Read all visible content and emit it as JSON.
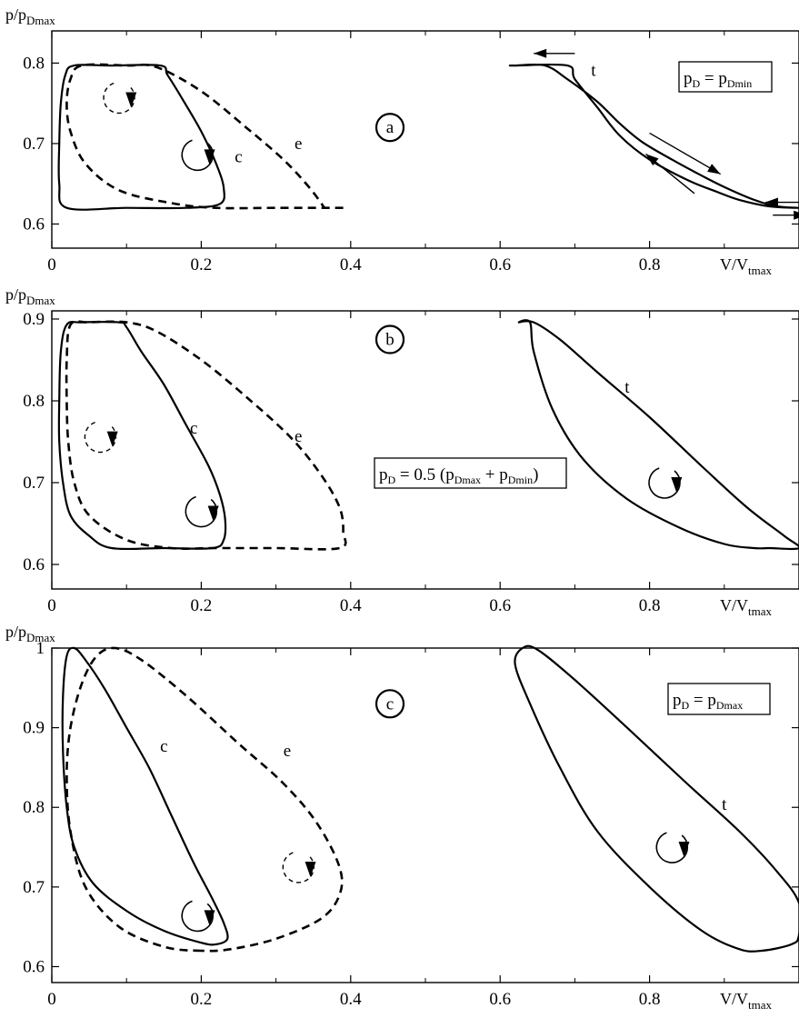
{
  "chart_data": [
    {
      "type": "line",
      "panel": "a",
      "ylabel": "p/p",
      "ylabel_sub": "Dmax",
      "xlabel": "V/V",
      "xlabel_sub": "tmax",
      "xlim": [
        0,
        1.0
      ],
      "ylim": [
        0.57,
        0.84
      ],
      "xticks": [
        0,
        0.2,
        0.4,
        0.6,
        0.8
      ],
      "yticks": [
        0.6,
        0.7,
        0.8
      ],
      "xtick_labels": [
        "0",
        "0.2",
        "0.4",
        "0.6",
        "0.8"
      ],
      "ytick_labels": [
        "0.6",
        "0.7",
        "0.8"
      ],
      "legend": {
        "parts": [
          {
            "text": "p"
          },
          {
            "text": "D",
            "sub": true
          },
          {
            "text": " = p"
          },
          {
            "text": "Dmin",
            "sub": true
          }
        ]
      },
      "series": [
        {
          "name": "c",
          "style": "solid",
          "closed": true,
          "points": [
            [
              0.02,
              0.62
            ],
            [
              0.01,
              0.65
            ],
            [
              0.01,
              0.7
            ],
            [
              0.012,
              0.75
            ],
            [
              0.018,
              0.785
            ],
            [
              0.03,
              0.797
            ],
            [
              0.08,
              0.797
            ],
            [
              0.145,
              0.797
            ],
            [
              0.155,
              0.785
            ],
            [
              0.175,
              0.755
            ],
            [
              0.2,
              0.715
            ],
            [
              0.22,
              0.675
            ],
            [
              0.23,
              0.645
            ],
            [
              0.225,
              0.625
            ],
            [
              0.18,
              0.62
            ],
            [
              0.1,
              0.62
            ]
          ]
        },
        {
          "name": "e",
          "style": "dashed",
          "closed": false,
          "points": [
            [
              0.39,
              0.62
            ],
            [
              0.3,
              0.62
            ],
            [
              0.22,
              0.62
            ],
            [
              0.16,
              0.626
            ],
            [
              0.09,
              0.642
            ],
            [
              0.045,
              0.675
            ],
            [
              0.025,
              0.715
            ],
            [
              0.02,
              0.75
            ],
            [
              0.025,
              0.78
            ],
            [
              0.04,
              0.797
            ],
            [
              0.1,
              0.797
            ],
            [
              0.14,
              0.795
            ],
            [
              0.2,
              0.765
            ],
            [
              0.26,
              0.72
            ],
            [
              0.31,
              0.68
            ],
            [
              0.345,
              0.645
            ],
            [
              0.365,
              0.62
            ]
          ]
        },
        {
          "name": "t",
          "style": "solid",
          "closed": true,
          "points": [
            [
              0.62,
              0.797
            ],
            [
              0.66,
              0.797
            ],
            [
              0.69,
              0.78
            ],
            [
              0.73,
              0.752
            ],
            [
              0.76,
              0.725
            ],
            [
              0.79,
              0.702
            ],
            [
              0.83,
              0.68
            ],
            [
              0.87,
              0.66
            ],
            [
              0.9,
              0.646
            ],
            [
              0.94,
              0.63
            ],
            [
              0.97,
              0.622
            ],
            [
              1.0,
              0.62
            ],
            [
              0.96,
              0.622
            ],
            [
              0.92,
              0.63
            ],
            [
              0.89,
              0.64
            ],
            [
              0.85,
              0.655
            ],
            [
              0.8,
              0.68
            ],
            [
              0.76,
              0.71
            ],
            [
              0.73,
              0.745
            ],
            [
              0.7,
              0.78
            ],
            [
              0.69,
              0.797
            ],
            [
              0.62,
              0.797
            ]
          ]
        }
      ],
      "curve_labels": [
        {
          "text": "c",
          "x": 0.25,
          "y": 0.677
        },
        {
          "text": "e",
          "x": 0.33,
          "y": 0.693
        },
        {
          "text": "t",
          "x": 0.725,
          "y": 0.784
        }
      ],
      "direction_markers": [
        {
          "x": 0.09,
          "y": 0.757,
          "style": "dashed",
          "rotation": "clockwise"
        },
        {
          "x": 0.195,
          "y": 0.686,
          "style": "solid",
          "rotation": "counterclockwise"
        }
      ],
      "panel_marker": {
        "text": "a",
        "x": 0.5,
        "y": 0.72
      }
    },
    {
      "type": "line",
      "panel": "b",
      "ylabel": "p/p",
      "ylabel_sub": "Dmax",
      "xlabel": "V/V",
      "xlabel_sub": "tmax",
      "xlim": [
        0,
        1.0
      ],
      "ylim": [
        0.57,
        0.91
      ],
      "xticks": [
        0,
        0.2,
        0.4,
        0.6,
        0.8
      ],
      "yticks": [
        0.6,
        0.7,
        0.8,
        0.9
      ],
      "xtick_labels": [
        "0",
        "0.2",
        "0.4",
        "0.6",
        "0.8"
      ],
      "ytick_labels": [
        "0.6",
        "0.7",
        "0.8",
        "0.9"
      ],
      "legend": {
        "parts": [
          {
            "text": "p"
          },
          {
            "text": "D",
            "sub": true
          },
          {
            "text": " = 0.5 (p"
          },
          {
            "text": "Dmax",
            "sub": true
          },
          {
            "text": " + p"
          },
          {
            "text": "Dmin",
            "sub": true
          },
          {
            "text": ")"
          }
        ]
      },
      "series": [
        {
          "name": "c",
          "style": "solid",
          "closed": true,
          "points": [
            [
              0.08,
              0.62
            ],
            [
              0.05,
              0.635
            ],
            [
              0.025,
              0.66
            ],
            [
              0.015,
              0.7
            ],
            [
              0.01,
              0.75
            ],
            [
              0.01,
              0.8
            ],
            [
              0.012,
              0.86
            ],
            [
              0.02,
              0.893
            ],
            [
              0.04,
              0.896
            ],
            [
              0.09,
              0.896
            ],
            [
              0.1,
              0.89
            ],
            [
              0.12,
              0.86
            ],
            [
              0.15,
              0.82
            ],
            [
              0.18,
              0.77
            ],
            [
              0.21,
              0.72
            ],
            [
              0.225,
              0.685
            ],
            [
              0.232,
              0.655
            ],
            [
              0.23,
              0.63
            ],
            [
              0.215,
              0.62
            ],
            [
              0.15,
              0.62
            ]
          ]
        },
        {
          "name": "e",
          "style": "dashed",
          "closed": true,
          "points": [
            [
              0.385,
              0.62
            ],
            [
              0.3,
              0.62
            ],
            [
              0.22,
              0.62
            ],
            [
              0.16,
              0.62
            ],
            [
              0.1,
              0.63
            ],
            [
              0.05,
              0.66
            ],
            [
              0.03,
              0.7
            ],
            [
              0.022,
              0.75
            ],
            [
              0.02,
              0.8
            ],
            [
              0.02,
              0.85
            ],
            [
              0.025,
              0.893
            ],
            [
              0.05,
              0.896
            ],
            [
              0.1,
              0.896
            ],
            [
              0.14,
              0.885
            ],
            [
              0.2,
              0.85
            ],
            [
              0.26,
              0.805
            ],
            [
              0.32,
              0.755
            ],
            [
              0.36,
              0.71
            ],
            [
              0.385,
              0.67
            ],
            [
              0.39,
              0.64
            ]
          ]
        },
        {
          "name": "t",
          "style": "solid",
          "closed": true,
          "points": [
            [
              0.625,
              0.896
            ],
            [
              0.645,
              0.896
            ],
            [
              0.68,
              0.875
            ],
            [
              0.73,
              0.835
            ],
            [
              0.8,
              0.78
            ],
            [
              0.87,
              0.72
            ],
            [
              0.93,
              0.67
            ],
            [
              0.98,
              0.635
            ],
            [
              1.0,
              0.62
            ],
            [
              0.96,
              0.62
            ],
            [
              0.94,
              0.62
            ],
            [
              0.9,
              0.625
            ],
            [
              0.84,
              0.645
            ],
            [
              0.77,
              0.68
            ],
            [
              0.71,
              0.73
            ],
            [
              0.67,
              0.79
            ],
            [
              0.645,
              0.86
            ],
            [
              0.64,
              0.896
            ]
          ]
        }
      ],
      "curve_labels": [
        {
          "text": "c",
          "x": 0.19,
          "y": 0.76
        },
        {
          "text": "e",
          "x": 0.33,
          "y": 0.75
        },
        {
          "text": "t",
          "x": 0.77,
          "y": 0.81
        }
      ],
      "direction_markers": [
        {
          "x": 0.065,
          "y": 0.756,
          "style": "dashed",
          "rotation": "clockwise"
        },
        {
          "x": 0.2,
          "y": 0.665,
          "style": "solid",
          "rotation": "counterclockwise"
        },
        {
          "x": 0.82,
          "y": 0.7,
          "style": "solid",
          "rotation": "clockwise"
        }
      ],
      "panel_marker": {
        "text": "b",
        "x": 0.5,
        "y": 0.875
      }
    },
    {
      "type": "line",
      "panel": "c",
      "ylabel": "p/p",
      "ylabel_sub": "Dmax",
      "xlabel": "V/V",
      "xlabel_sub": "tmax",
      "xlim": [
        0,
        1.0
      ],
      "ylim": [
        0.58,
        1.0
      ],
      "xticks": [
        0,
        0.2,
        0.4,
        0.6,
        0.8
      ],
      "yticks": [
        0.6,
        0.7,
        0.8,
        0.9,
        1.0
      ],
      "xtick_labels": [
        "0",
        "0.2",
        "0.4",
        "0.6",
        "0.8"
      ],
      "ytick_labels": [
        "0.6",
        "0.7",
        "0.8",
        "0.9",
        "1"
      ],
      "legend": {
        "parts": [
          {
            "text": "p"
          },
          {
            "text": "D",
            "sub": true
          },
          {
            "text": " = p"
          },
          {
            "text": "Dmax",
            "sub": true
          }
        ]
      },
      "series": [
        {
          "name": "c",
          "style": "solid",
          "closed": true,
          "points": [
            [
              0.22,
              0.628
            ],
            [
              0.2,
              0.63
            ],
            [
              0.15,
              0.645
            ],
            [
              0.1,
              0.67
            ],
            [
              0.055,
              0.705
            ],
            [
              0.03,
              0.75
            ],
            [
              0.02,
              0.8
            ],
            [
              0.015,
              0.87
            ],
            [
              0.015,
              0.94
            ],
            [
              0.02,
              0.99
            ],
            [
              0.03,
              1.0
            ],
            [
              0.045,
              0.985
            ],
            [
              0.07,
              0.95
            ],
            [
              0.1,
              0.9
            ],
            [
              0.13,
              0.85
            ],
            [
              0.16,
              0.79
            ],
            [
              0.19,
              0.73
            ],
            [
              0.215,
              0.685
            ],
            [
              0.23,
              0.655
            ],
            [
              0.235,
              0.635
            ]
          ]
        },
        {
          "name": "e",
          "style": "dashed",
          "closed": true,
          "points": [
            [
              0.2,
              0.62
            ],
            [
              0.15,
              0.625
            ],
            [
              0.09,
              0.65
            ],
            [
              0.045,
              0.7
            ],
            [
              0.025,
              0.77
            ],
            [
              0.02,
              0.84
            ],
            [
              0.025,
              0.9
            ],
            [
              0.04,
              0.955
            ],
            [
              0.06,
              0.99
            ],
            [
              0.085,
              1.0
            ],
            [
              0.12,
              0.985
            ],
            [
              0.18,
              0.94
            ],
            [
              0.25,
              0.88
            ],
            [
              0.31,
              0.83
            ],
            [
              0.355,
              0.78
            ],
            [
              0.385,
              0.725
            ],
            [
              0.385,
              0.69
            ],
            [
              0.36,
              0.66
            ],
            [
              0.3,
              0.635
            ],
            [
              0.24,
              0.622
            ]
          ]
        },
        {
          "name": "t",
          "style": "solid",
          "closed": true,
          "points": [
            [
              0.62,
              0.98
            ],
            [
              0.63,
              1.0
            ],
            [
              0.65,
              0.998
            ],
            [
              0.7,
              0.96
            ],
            [
              0.77,
              0.9
            ],
            [
              0.85,
              0.83
            ],
            [
              0.92,
              0.77
            ],
            [
              0.97,
              0.72
            ],
            [
              1.0,
              0.68
            ],
            [
              1.0,
              0.64
            ],
            [
              0.99,
              0.628
            ],
            [
              0.95,
              0.62
            ],
            [
              0.92,
              0.622
            ],
            [
              0.87,
              0.645
            ],
            [
              0.8,
              0.7
            ],
            [
              0.73,
              0.77
            ],
            [
              0.68,
              0.85
            ],
            [
              0.64,
              0.93
            ]
          ]
        }
      ],
      "curve_labels": [
        {
          "text": "c",
          "x": 0.15,
          "y": 0.87
        },
        {
          "text": "e",
          "x": 0.315,
          "y": 0.864
        },
        {
          "text": "t",
          "x": 0.9,
          "y": 0.797
        }
      ],
      "direction_markers": [
        {
          "x": 0.33,
          "y": 0.725,
          "style": "dashed",
          "rotation": "clockwise"
        },
        {
          "x": 0.195,
          "y": 0.664,
          "style": "solid",
          "rotation": "counterclockwise"
        },
        {
          "x": 0.83,
          "y": 0.75,
          "style": "solid",
          "rotation": "clockwise"
        }
      ],
      "panel_marker": {
        "text": "c",
        "x": 0.5,
        "y": 0.93
      }
    }
  ]
}
